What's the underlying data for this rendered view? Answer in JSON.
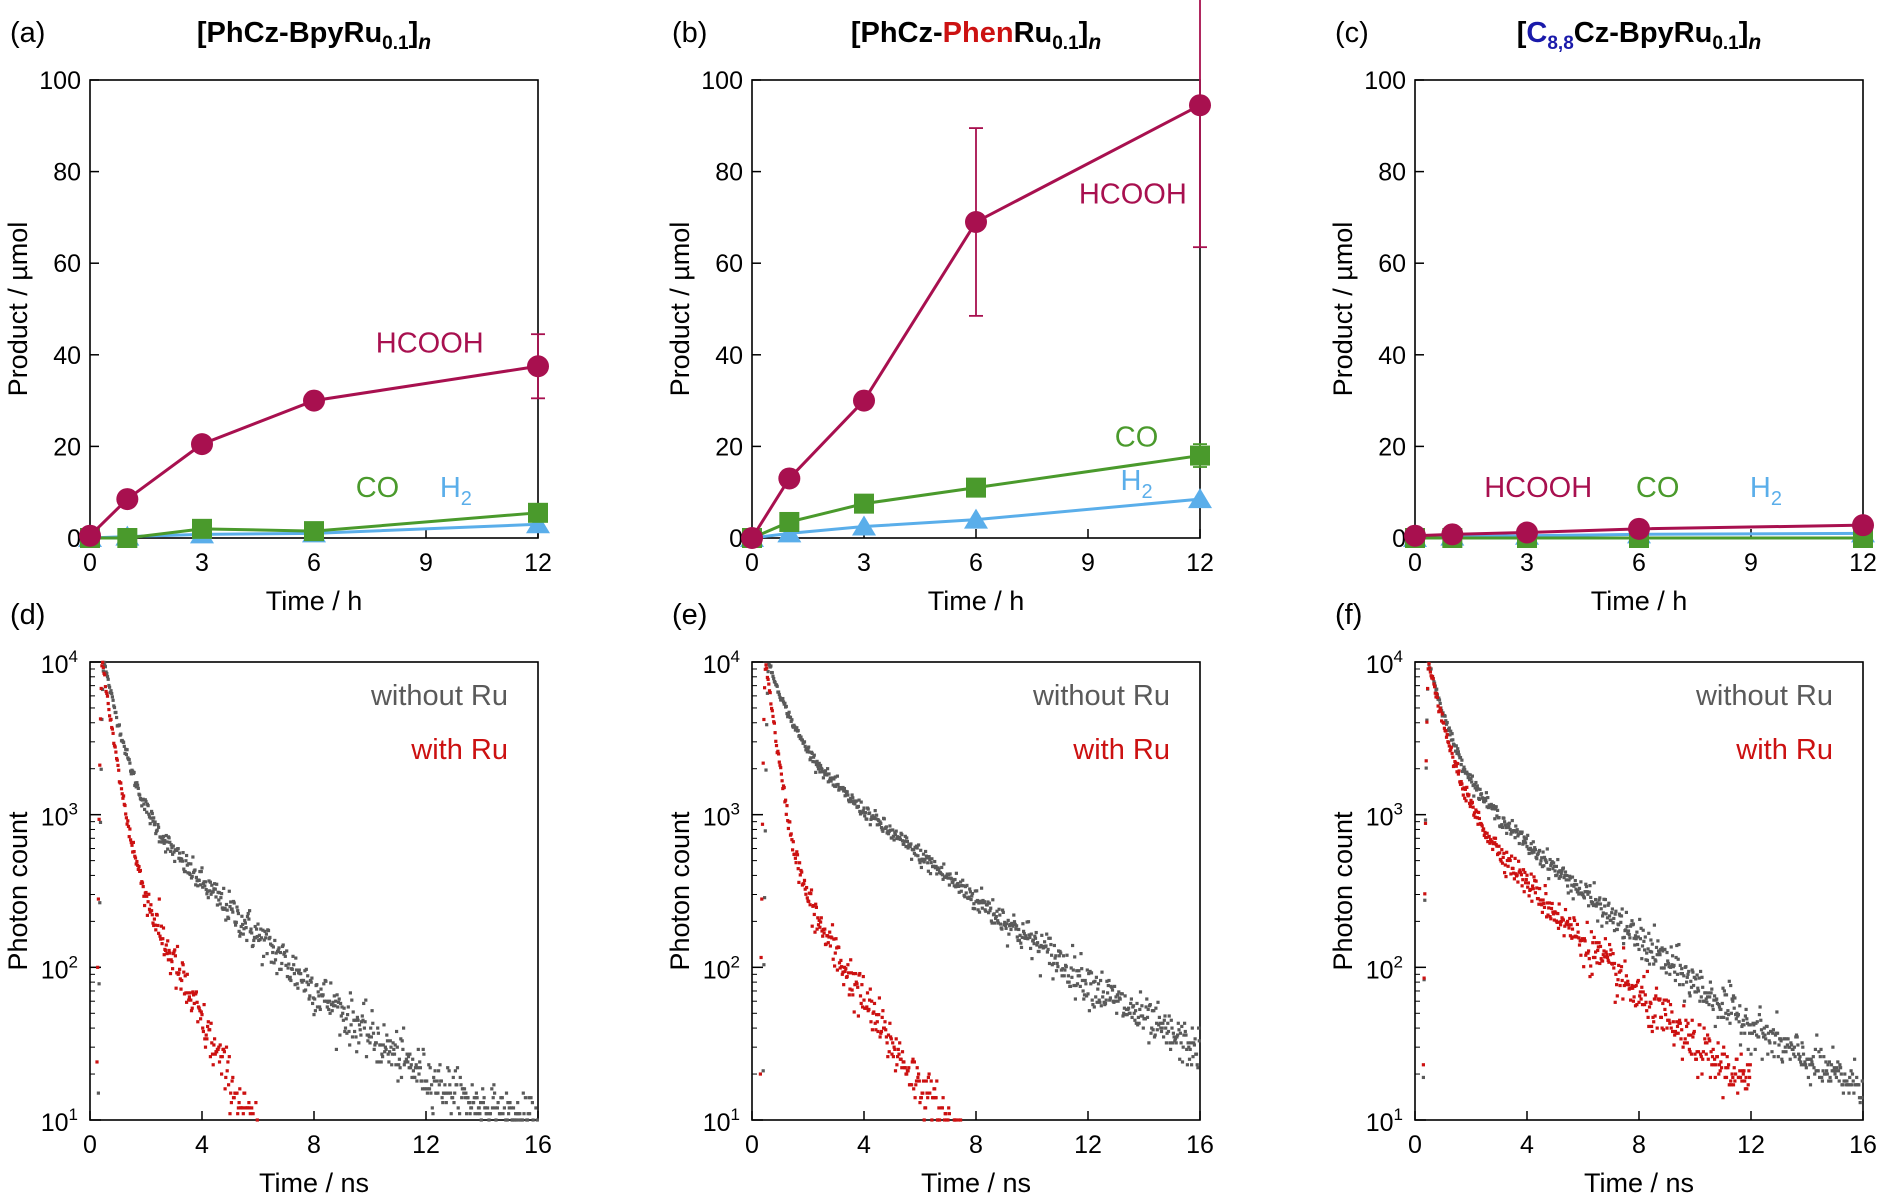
{
  "colors": {
    "HCOOH": "#a8104f",
    "CO": "#4a9a2c",
    "H2": "#5aaeea",
    "without_ru": "#5a5a5a",
    "with_ru": "#cc1111",
    "phen_highlight": "#cc1111",
    "c88_highlight": "#1a1aaa"
  },
  "chart_data": [
    {
      "id": "a",
      "panel_label": "(a)",
      "title": {
        "pre": "[PhCz-",
        "mid": "",
        "post": "BpyRu",
        "sub": "0.1",
        "close": "]",
        "n": "n"
      },
      "type": "line",
      "xlabel": "Time / h",
      "ylabel": "Product / µmol",
      "xlim": [
        0,
        12
      ],
      "ylim": [
        0,
        100
      ],
      "xticks": [
        0,
        3,
        6,
        9,
        12
      ],
      "yticks": [
        0,
        20,
        40,
        60,
        80,
        100
      ],
      "series": [
        {
          "name": "HCOOH",
          "marker": "circle",
          "x": [
            0,
            1,
            3,
            6,
            12
          ],
          "y": [
            0.5,
            8.5,
            20.5,
            30,
            37.5
          ],
          "err": [
            0,
            0,
            0,
            0,
            7
          ]
        },
        {
          "name": "CO",
          "marker": "square",
          "x": [
            0,
            1,
            3,
            6,
            12
          ],
          "y": [
            0,
            0,
            2,
            1.5,
            5.5
          ],
          "err": [
            0,
            0,
            0,
            0,
            0
          ]
        },
        {
          "name": "H2",
          "marker": "triangle",
          "x": [
            0,
            1,
            3,
            6,
            12
          ],
          "y": [
            0,
            0.3,
            0.8,
            1,
            3
          ],
          "err": [
            0,
            0,
            0,
            0,
            0
          ]
        }
      ],
      "annotations": [
        {
          "text": "HCOOH",
          "series": "HCOOH",
          "x": 9.1,
          "y": 40.5
        },
        {
          "text": "CO",
          "series": "CO",
          "x": 7.7,
          "y": 9
        },
        {
          "text": "H",
          "sub": "2",
          "series": "H2",
          "x": 9.8,
          "y": 9
        }
      ]
    },
    {
      "id": "b",
      "panel_label": "(b)",
      "title": {
        "pre": "[PhCz-",
        "mid": "Phen",
        "post": "Ru",
        "sub": "0.1",
        "close": "]",
        "n": "n",
        "mid_color": "phen_highlight"
      },
      "type": "line",
      "xlabel": "Time / h",
      "ylabel": "Product / µmol",
      "xlim": [
        0,
        12
      ],
      "ylim": [
        0,
        100
      ],
      "xticks": [
        0,
        3,
        6,
        9,
        12
      ],
      "yticks": [
        0,
        20,
        40,
        60,
        80,
        100
      ],
      "series": [
        {
          "name": "HCOOH",
          "marker": "circle",
          "x": [
            0,
            1,
            3,
            6,
            12
          ],
          "y": [
            0,
            13,
            30,
            69,
            94.5
          ],
          "err": [
            0,
            0,
            0,
            20.5,
            31
          ]
        },
        {
          "name": "CO",
          "marker": "square",
          "x": [
            0,
            1,
            3,
            6,
            12
          ],
          "y": [
            0,
            3.5,
            7.5,
            11,
            18
          ],
          "err": [
            0,
            0,
            0,
            0,
            2.5
          ]
        },
        {
          "name": "H2",
          "marker": "triangle",
          "x": [
            0,
            1,
            3,
            6,
            12
          ],
          "y": [
            0,
            1,
            2.5,
            4,
            8.5
          ],
          "err": [
            0,
            0,
            0,
            0,
            0
          ]
        }
      ],
      "annotations": [
        {
          "text": "HCOOH",
          "series": "HCOOH",
          "x": 10.2,
          "y": 73
        },
        {
          "text": "CO",
          "series": "CO",
          "x": 10.3,
          "y": 20
        },
        {
          "text": "H",
          "sub": "2",
          "series": "H2",
          "x": 10.3,
          "y": 10.5
        }
      ]
    },
    {
      "id": "c",
      "panel_label": "(c)",
      "title": {
        "pre": "[",
        "mid": "C",
        "mid_sub": "8,8",
        "post": "Cz-BpyRu",
        "sub": "0.1",
        "close": "]",
        "n": "n",
        "mid_color": "c88_highlight"
      },
      "type": "line",
      "xlabel": "Time / h",
      "ylabel": "Product / µmol",
      "xlim": [
        0,
        12
      ],
      "ylim": [
        0,
        100
      ],
      "xticks": [
        0,
        3,
        6,
        9,
        12
      ],
      "yticks": [
        0,
        20,
        40,
        60,
        80,
        100
      ],
      "series": [
        {
          "name": "HCOOH",
          "marker": "circle",
          "x": [
            0,
            1,
            3,
            6,
            12
          ],
          "y": [
            0.5,
            0.8,
            1.2,
            2,
            2.8
          ],
          "err": [
            0,
            0,
            0,
            0,
            0
          ]
        },
        {
          "name": "CO",
          "marker": "square",
          "x": [
            0,
            1,
            3,
            6,
            12
          ],
          "y": [
            0,
            0,
            0,
            0,
            0
          ],
          "err": [
            0,
            0,
            0,
            0,
            0
          ]
        },
        {
          "name": "H2",
          "marker": "triangle",
          "x": [
            0,
            1,
            3,
            6,
            12
          ],
          "y": [
            0,
            0.3,
            0.5,
            0.8,
            1
          ],
          "err": [
            0,
            0,
            0,
            0,
            0
          ]
        }
      ],
      "annotations": [
        {
          "text": "HCOOH",
          "series": "HCOOH",
          "x": 3.3,
          "y": 9
        },
        {
          "text": "CO",
          "series": "CO",
          "x": 6.5,
          "y": 9
        },
        {
          "text": "H",
          "sub": "2",
          "series": "H2",
          "x": 9.4,
          "y": 9
        }
      ]
    },
    {
      "id": "d",
      "panel_label": "(d)",
      "type": "scatter",
      "yscale": "log",
      "xlabel": "Time / ns",
      "ylabel": "Photon count",
      "xlim": [
        0,
        16
      ],
      "ylim": [
        10,
        10000
      ],
      "xticks": [
        0,
        4,
        8,
        12,
        16
      ],
      "yticks": [
        {
          "base": "10",
          "exp": "1"
        },
        {
          "base": "10",
          "exp": "2"
        },
        {
          "base": "10",
          "exp": "3"
        },
        {
          "base": "10",
          "exp": "4"
        }
      ],
      "series": [
        {
          "name": "without Ru",
          "peak_t": 0.5,
          "rise_width": 0.08,
          "tau1": 0.45,
          "tau2": 2.4,
          "amp1": 8500,
          "amp2": 1500,
          "baseline": 7,
          "noise": 0.18,
          "t_end": 16
        },
        {
          "name": "with Ru",
          "peak_t": 0.45,
          "rise_width": 0.08,
          "tau1": 0.3,
          "tau2": 1.15,
          "amp1": 9000,
          "amp2": 950,
          "baseline": 0,
          "noise": 0.18,
          "t_end": 8
        }
      ],
      "legend": [
        {
          "text": "without Ru",
          "series": "without Ru"
        },
        {
          "text": "with Ru",
          "series": "with Ru"
        }
      ],
      "legend_position": "top-right"
    },
    {
      "id": "e",
      "panel_label": "(e)",
      "type": "scatter",
      "yscale": "log",
      "xlabel": "Time / ns",
      "ylabel": "Photon count",
      "xlim": [
        0,
        16
      ],
      "ylim": [
        10,
        10000
      ],
      "xticks": [
        0,
        4,
        8,
        12,
        16
      ],
      "yticks": [
        {
          "base": "10",
          "exp": "1"
        },
        {
          "base": "10",
          "exp": "2"
        },
        {
          "base": "10",
          "exp": "3"
        },
        {
          "base": "10",
          "exp": "4"
        }
      ],
      "series": [
        {
          "name": "without Ru",
          "peak_t": 0.6,
          "rise_width": 0.08,
          "tau1": 0.6,
          "tau2": 3.0,
          "amp1": 6500,
          "amp2": 3200,
          "baseline": 9,
          "noise": 0.16,
          "t_end": 16
        },
        {
          "name": "with Ru",
          "peak_t": 0.5,
          "rise_width": 0.08,
          "tau1": 0.28,
          "tau2": 1.4,
          "amp1": 9200,
          "amp2": 700,
          "baseline": 3,
          "noise": 0.18,
          "t_end": 12
        }
      ],
      "legend": [
        {
          "text": "without Ru",
          "series": "without Ru"
        },
        {
          "text": "with Ru",
          "series": "with Ru"
        }
      ],
      "legend_position": "top-right"
    },
    {
      "id": "f",
      "panel_label": "(f)",
      "type": "scatter",
      "yscale": "log",
      "xlabel": "Time / ns",
      "ylabel": "Photon count",
      "xlim": [
        0,
        16
      ],
      "ylim": [
        10,
        10000
      ],
      "xticks": [
        0,
        4,
        8,
        12,
        16
      ],
      "yticks": [
        {
          "base": "10",
          "exp": "1"
        },
        {
          "base": "10",
          "exp": "2"
        },
        {
          "base": "10",
          "exp": "3"
        },
        {
          "base": "10",
          "exp": "4"
        }
      ],
      "series": [
        {
          "name": "without Ru",
          "peak_t": 0.5,
          "rise_width": 0.08,
          "tau1": 0.5,
          "tau2": 2.7,
          "amp1": 7500,
          "amp2": 2300,
          "baseline": 9,
          "noise": 0.16,
          "t_end": 16
        },
        {
          "name": "with Ru",
          "peak_t": 0.5,
          "rise_width": 0.08,
          "tau1": 0.45,
          "tau2": 2.2,
          "amp1": 8000,
          "amp2": 1700,
          "baseline": 8,
          "noise": 0.18,
          "t_end": 12
        }
      ],
      "legend": [
        {
          "text": "without Ru",
          "series": "without Ru"
        },
        {
          "text": "with Ru",
          "series": "with Ru"
        }
      ],
      "legend_position": "top-right"
    }
  ]
}
